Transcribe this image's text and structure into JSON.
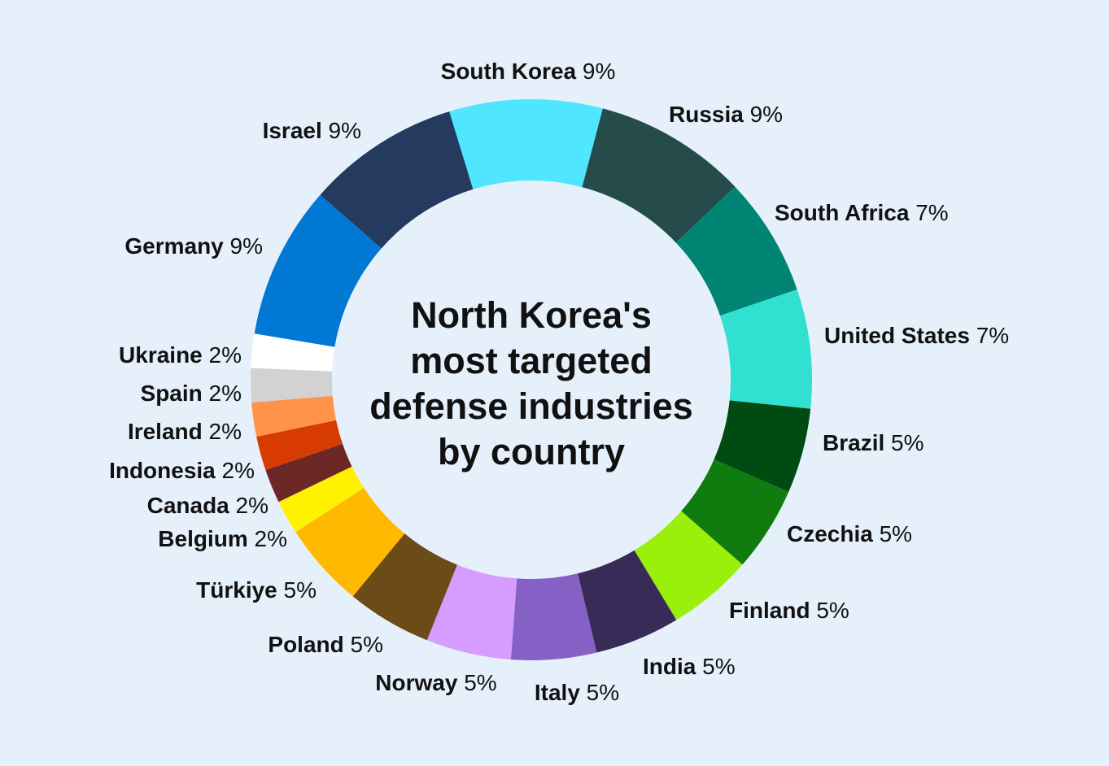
{
  "chart_data": {
    "type": "pie",
    "style": "donut",
    "title_lines": [
      "North Korea's",
      "most targeted",
      "defense industries",
      "by country"
    ],
    "slices": [
      {
        "label": "South Korea",
        "value": 9,
        "display": "9%",
        "color": "#50e6ff"
      },
      {
        "label": "Russia",
        "value": 9,
        "display": "9%",
        "color": "#264b4b"
      },
      {
        "label": "South Africa",
        "value": 7,
        "display": "7%",
        "color": "#008575"
      },
      {
        "label": "United States",
        "value": 7,
        "display": "7%",
        "color": "#30e0d0"
      },
      {
        "label": "Brazil",
        "value": 5,
        "display": "5%",
        "color": "#004b12"
      },
      {
        "label": "Czechia",
        "value": 5,
        "display": "5%",
        "color": "#107c10"
      },
      {
        "label": "Finland",
        "value": 5,
        "display": "5%",
        "color": "#9bf00b"
      },
      {
        "label": "India",
        "value": 5,
        "display": "5%",
        "color": "#392b58"
      },
      {
        "label": "Italy",
        "value": 5,
        "display": "5%",
        "color": "#8661c5"
      },
      {
        "label": "Norway",
        "value": 5,
        "display": "5%",
        "color": "#d59dff"
      },
      {
        "label": "Poland",
        "value": 5,
        "display": "5%",
        "color": "#6b4b17"
      },
      {
        "label": "Türkiye",
        "value": 5,
        "display": "5%",
        "color": "#ffb900"
      },
      {
        "label": "Belgium",
        "value": 2,
        "display": "2%",
        "color": "#fff100"
      },
      {
        "label": "Canada",
        "value": 2,
        "display": "2%",
        "color": "#6e2727"
      },
      {
        "label": "Indonesia",
        "value": 2,
        "display": "2%",
        "color": "#d83b01"
      },
      {
        "label": "Ireland",
        "value": 2,
        "display": "2%",
        "color": "#ff9349"
      },
      {
        "label": "Spain",
        "value": 2,
        "display": "2%",
        "color": "#d2d2d2"
      },
      {
        "label": "Ukraine",
        "value": 2,
        "display": "2%",
        "color": "#ffffff"
      },
      {
        "label": "Germany",
        "value": 9,
        "display": "9%",
        "color": "#0078d4"
      },
      {
        "label": "Israel",
        "value": 9,
        "display": "9%",
        "color": "#243a5e"
      }
    ]
  }
}
